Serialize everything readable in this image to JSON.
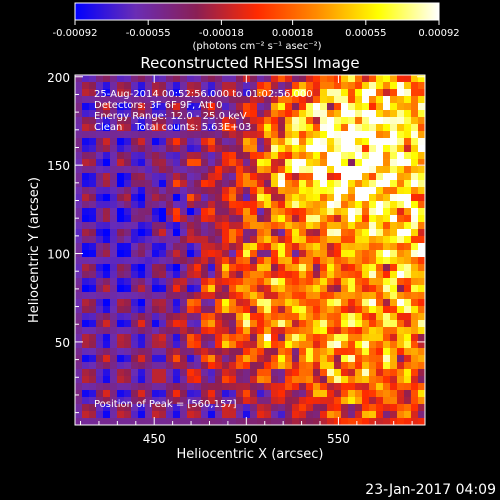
{
  "chart_data": {
    "type": "heatmap",
    "title": "Reconstructed RHESSI Image",
    "xlabel": "Heliocentric X (arcsec)",
    "ylabel": "Heliocentric Y (arcsec)",
    "xlim": [
      407,
      597
    ],
    "ylim": [
      3,
      201
    ],
    "xticks": [
      450,
      500,
      550
    ],
    "yticks": [
      50,
      100,
      150,
      200
    ],
    "colorbar": {
      "ticks": [
        "-0.00092",
        "-0.00055",
        "-0.00018",
        "0.00018",
        "0.00055",
        "0.00092"
      ],
      "range": [
        -0.00092,
        0.00092
      ],
      "unit_line": "(photons cm⁻² s⁻¹ asec⁻²)",
      "colors": [
        "#0000ff",
        "#6a2db5",
        "#8a1f55",
        "#ff2a00",
        "#ff8c00",
        "#ffff00",
        "#ffffff"
      ]
    },
    "annotations": [
      "25-Aug-2014 00:52:56.000 to 01:02:56.000",
      "Detectors: 3F 6F 9F, Att 0",
      "Energy Range: 12.0 - 25.0 keV",
      "Clean    Total counts: 5.63E+03"
    ],
    "peak_label": "Position of Peak = [560,157]",
    "peak": {
      "x": 560,
      "y": 157
    },
    "footer_date": "23-Jan-2017 04:09"
  }
}
